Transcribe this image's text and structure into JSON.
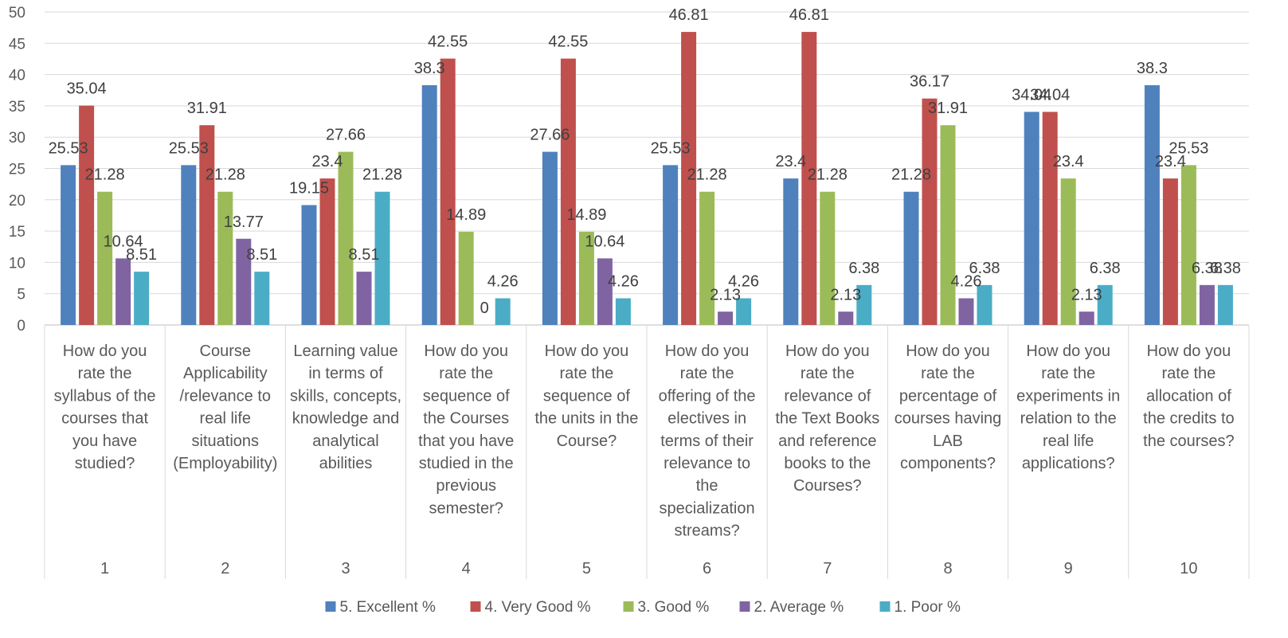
{
  "chart_data": {
    "type": "bar",
    "title": "",
    "xlabel": "",
    "ylabel": "",
    "ylim": [
      0,
      50
    ],
    "ytick_step": 5,
    "grid": true,
    "legend_position": "bottom",
    "categories": [
      "1",
      "2",
      "3",
      "4",
      "5",
      "6",
      "7",
      "8",
      "9",
      "10"
    ],
    "category_descriptions": [
      [
        "How do you",
        "rate the",
        "syllabus of the",
        "courses that",
        "you have",
        "studied?"
      ],
      [
        "Course",
        "Applicability",
        "/relevance to",
        "real life",
        "situations",
        "(Employability)"
      ],
      [
        "Learning value",
        "in terms of",
        "skills, concepts,",
        "knowledge and",
        "analytical",
        "abilities"
      ],
      [
        "How do you",
        "rate the",
        "sequence of",
        "the Courses",
        "that you have",
        "studied in the",
        "previous",
        "semester?"
      ],
      [
        "How do you",
        "rate the",
        "sequence of",
        "the units in the",
        "Course?"
      ],
      [
        "How do you",
        "rate the",
        "offering of the",
        "electives in",
        "terms of their",
        "relevance to",
        "the",
        "specialization",
        "streams?"
      ],
      [
        "How do you",
        "rate the",
        "relevance of",
        "the Text Books",
        "and reference",
        "books to the",
        "Courses?"
      ],
      [
        "How do you",
        "rate the",
        "percentage of",
        "courses having",
        "LAB",
        "components?"
      ],
      [
        "How do you",
        "rate the",
        "experiments in",
        "relation to the",
        "real life",
        "applications?"
      ],
      [
        "How do you",
        "rate the",
        "allocation of",
        "the credits to",
        "the courses?"
      ]
    ],
    "series": [
      {
        "name": "5. Excellent %",
        "color": "#4F81BD",
        "values": [
          25.53,
          25.53,
          19.15,
          38.3,
          27.66,
          25.53,
          23.4,
          21.28,
          34.04,
          38.3
        ]
      },
      {
        "name": "4. Very Good %",
        "color": "#C0504D",
        "values": [
          35.04,
          31.91,
          23.4,
          42.55,
          42.55,
          46.81,
          46.81,
          36.17,
          34.04,
          23.4
        ]
      },
      {
        "name": "3. Good %",
        "color": "#9BBB59",
        "values": [
          21.28,
          21.28,
          27.66,
          14.89,
          14.89,
          21.28,
          21.28,
          31.91,
          23.4,
          25.53
        ]
      },
      {
        "name": "2. Average %",
        "color": "#8064A2",
        "values": [
          10.64,
          13.77,
          8.51,
          0,
          10.64,
          2.13,
          2.13,
          4.26,
          2.13,
          6.38
        ]
      },
      {
        "name": "1. Poor %",
        "color": "#4BACC6",
        "values": [
          8.51,
          8.51,
          21.28,
          4.26,
          4.26,
          4.26,
          6.38,
          6.38,
          6.38,
          6.38
        ]
      }
    ]
  }
}
